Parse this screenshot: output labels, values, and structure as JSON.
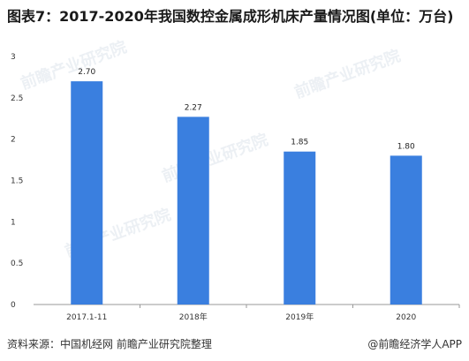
{
  "title": "图表7：2017-2020年我国数控金属成形机床产量情况图(单位：万台)",
  "source": "资料来源：中国机经网 前瞻产业研究院整理",
  "brand": "@前瞻经济学人APP",
  "watermark": "前瞻产业研究院",
  "colors": {
    "bar": "#3a7fdf",
    "axis": "#999999",
    "grid": "#e5e5e5"
  },
  "chart_data": {
    "type": "bar",
    "categories": [
      "2017.1-11",
      "2018年",
      "2019年",
      "2020"
    ],
    "values": [
      2.7,
      2.27,
      1.85,
      1.8
    ],
    "value_labels": [
      "2.70",
      "2.27",
      "1.85",
      "1.80"
    ],
    "ylim": [
      0,
      3
    ],
    "yticks": [
      "0",
      "0.5",
      "1",
      "1.5",
      "2",
      "2.5",
      "3"
    ],
    "grid": false,
    "legend": "none"
  }
}
